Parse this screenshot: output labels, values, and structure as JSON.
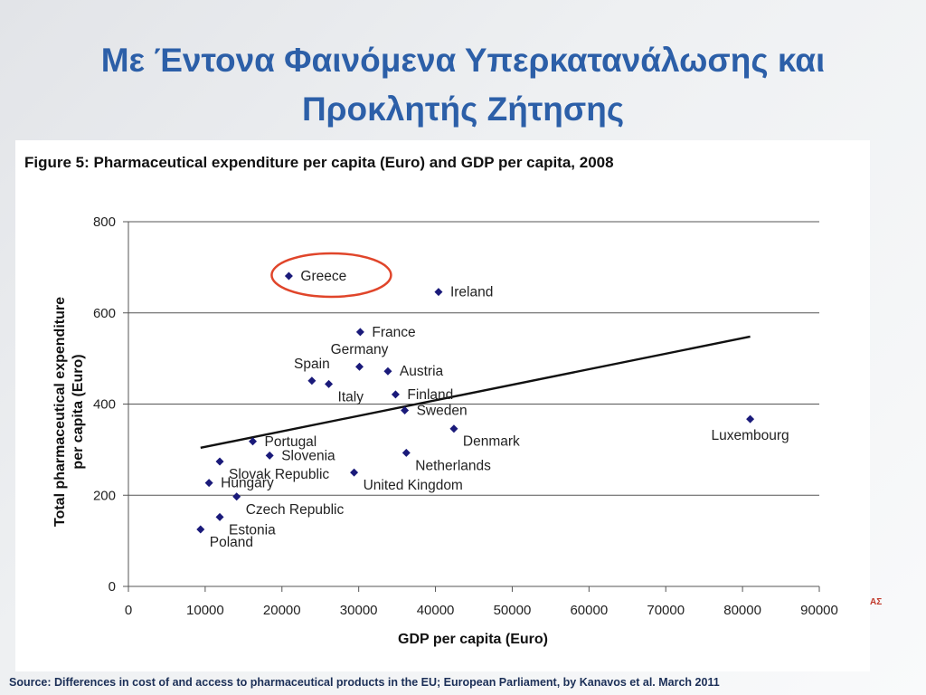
{
  "slide": {
    "title_line1": "Με Έντονα Φαινόμενα Υπερκατανάλωσης και",
    "title_line2": "Προκλητής Ζήτησης",
    "source": "Source:  Differences in cost of and access to pharmaceutical products in the EU; European Parliament, by Kanavos et al. March 2011"
  },
  "chart_data": {
    "type": "scatter",
    "title": "Figure 5: Pharmaceutical expenditure per capita (Euro) and GDP per capita, 2008",
    "xlabel": "GDP per capita (Euro)",
    "ylabel_line1": "Total pharmaceutical expenditure",
    "ylabel_line2": "per capita (Euro)",
    "xlim": [
      0,
      90000
    ],
    "ylim": [
      0,
      800
    ],
    "xticks": [
      0,
      10000,
      20000,
      30000,
      40000,
      50000,
      60000,
      70000,
      80000,
      90000
    ],
    "yticks": [
      0,
      200,
      400,
      600,
      800
    ],
    "horizontal_gridlines": true,
    "marker_color": "#1a1a7a",
    "highlight_color": "#e0452a",
    "highlighted_point": "Greece",
    "points": [
      {
        "label": "Greece",
        "x": 20900,
        "y": 681,
        "label_pos": "right"
      },
      {
        "label": "Ireland",
        "x": 40400,
        "y": 646,
        "label_pos": "right"
      },
      {
        "label": "France",
        "x": 30200,
        "y": 558,
        "label_pos": "right"
      },
      {
        "label": "Germany",
        "x": 30100,
        "y": 482,
        "label_pos": "above"
      },
      {
        "label": "Austria",
        "x": 33800,
        "y": 472,
        "label_pos": "right"
      },
      {
        "label": "Spain",
        "x": 23900,
        "y": 451,
        "label_pos": "above"
      },
      {
        "label": "Italy",
        "x": 26100,
        "y": 444,
        "label_pos": "below-right"
      },
      {
        "label": "Finland",
        "x": 34800,
        "y": 421,
        "label_pos": "right"
      },
      {
        "label": "Sweden",
        "x": 36000,
        "y": 386,
        "label_pos": "right"
      },
      {
        "label": "Denmark",
        "x": 42400,
        "y": 346,
        "label_pos": "below-right"
      },
      {
        "label": "Luxembourg",
        "x": 81000,
        "y": 367,
        "label_pos": "below"
      },
      {
        "label": "Portugal",
        "x": 16200,
        "y": 318,
        "label_pos": "right"
      },
      {
        "label": "Slovenia",
        "x": 18400,
        "y": 287,
        "label_pos": "right"
      },
      {
        "label": "Netherlands",
        "x": 36200,
        "y": 293,
        "label_pos": "below-right"
      },
      {
        "label": "Slovak Republic",
        "x": 11900,
        "y": 274,
        "label_pos": "below-right"
      },
      {
        "label": "United Kingdom",
        "x": 29400,
        "y": 250,
        "label_pos": "below-right"
      },
      {
        "label": "Hungary",
        "x": 10500,
        "y": 227,
        "label_pos": "right"
      },
      {
        "label": "Czech Republic",
        "x": 14100,
        "y": 197,
        "label_pos": "below-right"
      },
      {
        "label": "Estonia",
        "x": 11900,
        "y": 152,
        "label_pos": "below-right"
      },
      {
        "label": "Poland",
        "x": 9400,
        "y": 125,
        "label_pos": "below-right"
      }
    ],
    "trendline": {
      "x": [
        9400,
        81000
      ],
      "y": [
        304,
        548
      ]
    }
  }
}
